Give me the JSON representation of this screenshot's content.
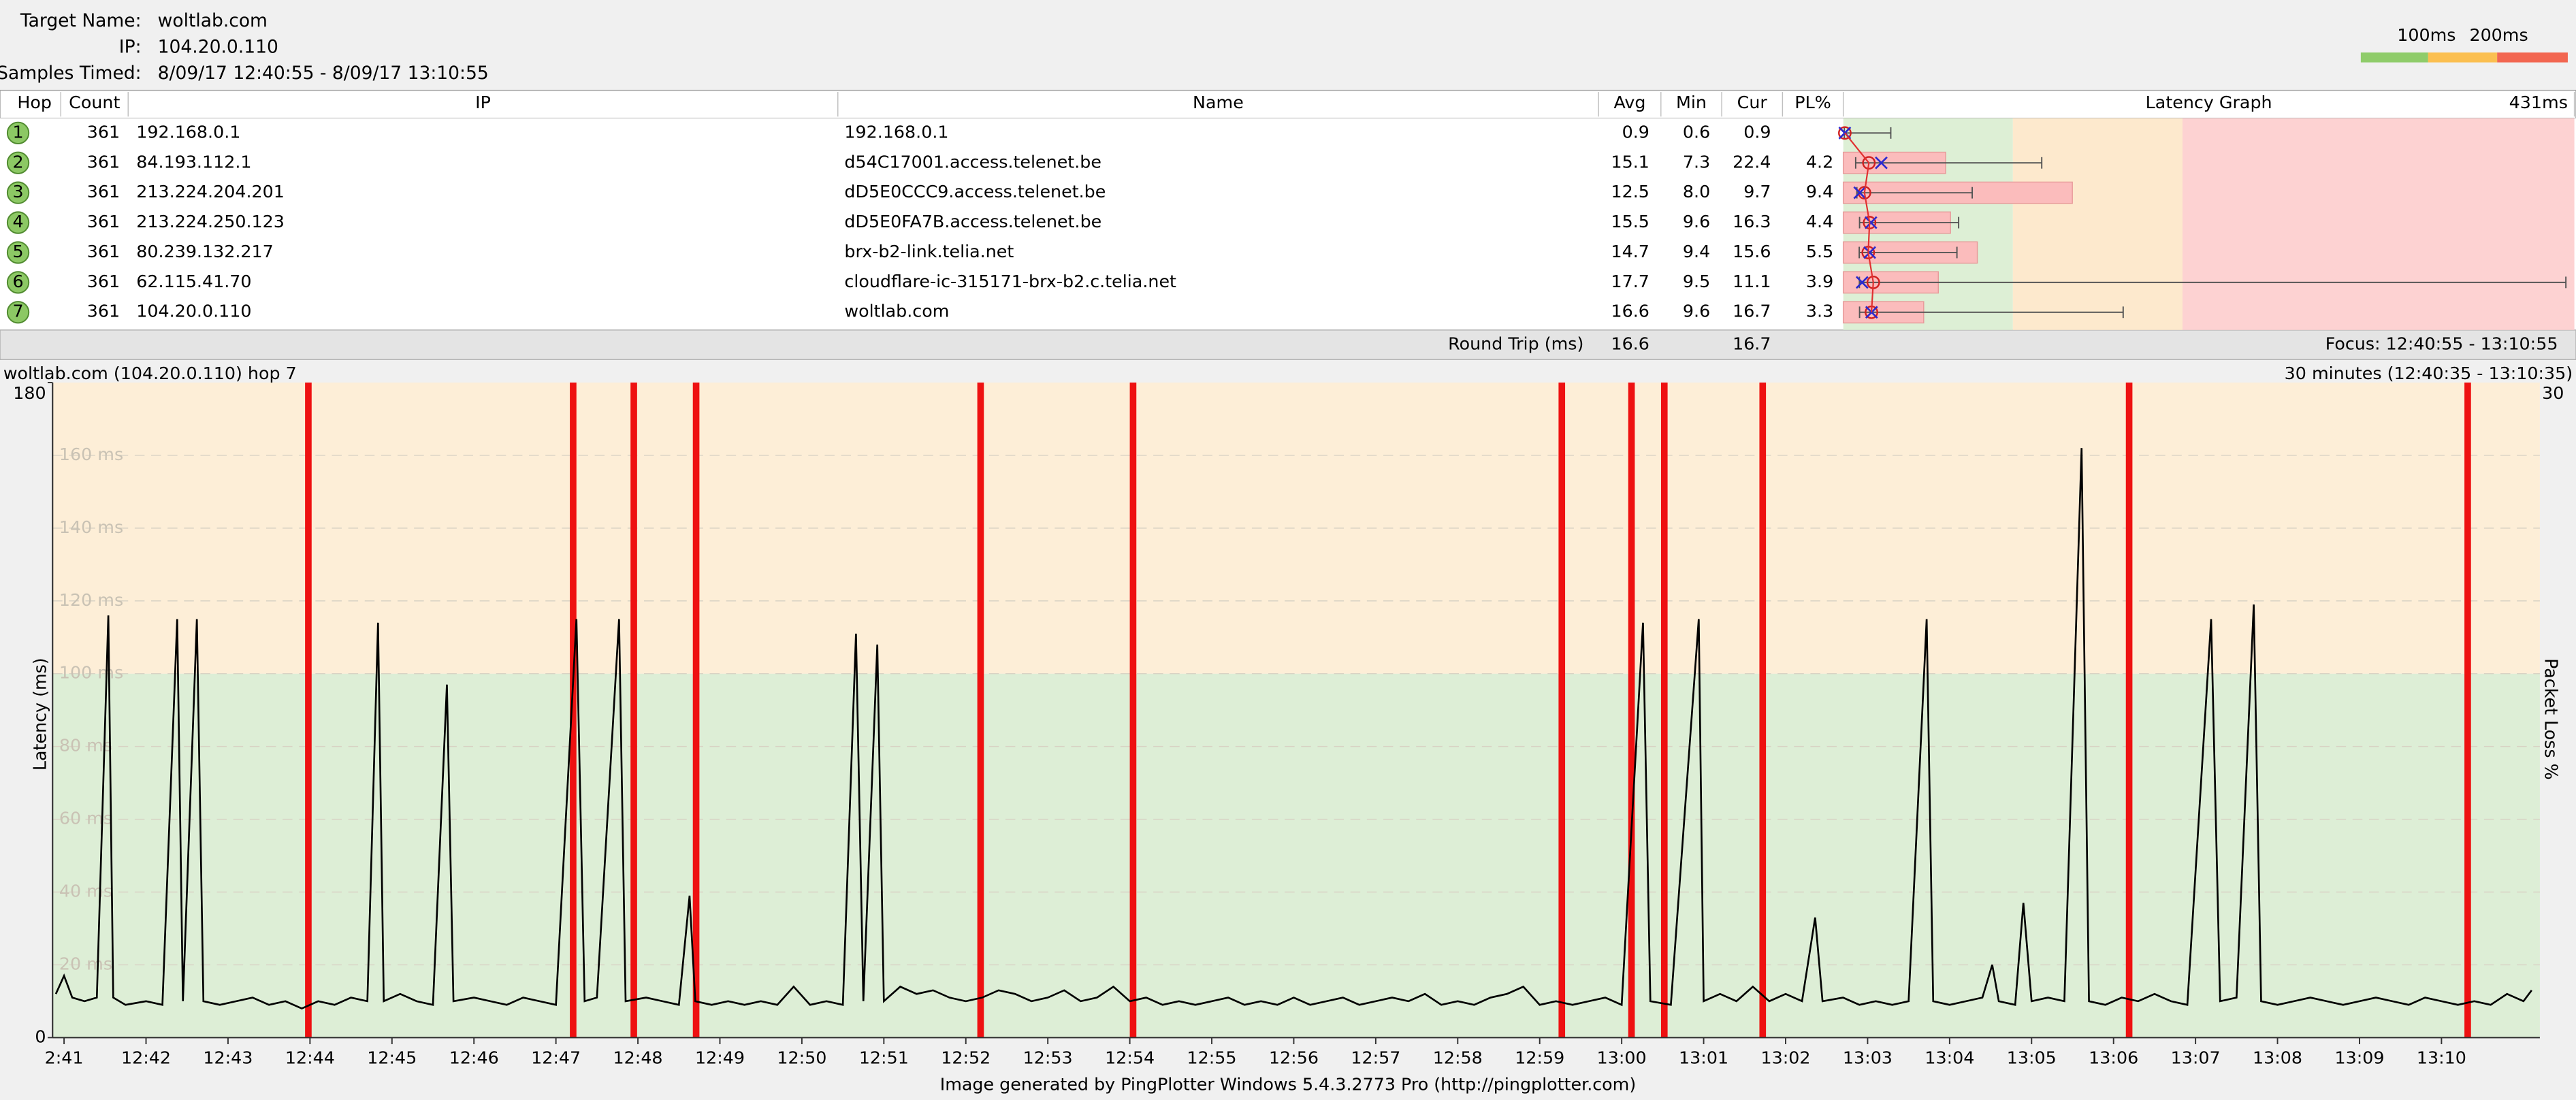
{
  "header": {
    "target_label": "Target Name:",
    "target": "woltlab.com",
    "ip_label": "IP:",
    "ip": "104.20.0.110",
    "samples_label": "Samples Timed:",
    "samples": "8/09/17 12:40:55 - 8/09/17 13:10:55"
  },
  "thresholds": [
    {
      "value": 100,
      "label": "100ms"
    },
    {
      "value": 200,
      "label": "200ms"
    }
  ],
  "table": {
    "columns": [
      "Hop",
      "Count",
      "IP",
      "Name",
      "Avg",
      "Min",
      "Cur",
      "PL%",
      "Latency Graph"
    ],
    "graph_scale": {
      "value": 431,
      "label": "431ms"
    },
    "rows": [
      {
        "hop": 1,
        "count": 361,
        "ip": "192.168.0.1",
        "name": "192.168.0.1",
        "avg": "0.9",
        "min": "0.6",
        "cur": "0.9",
        "pl": null,
        "graph_max": 28
      },
      {
        "hop": 2,
        "count": 361,
        "ip": "84.193.112.1",
        "name": "d54C17001.access.telenet.be",
        "avg": "15.1",
        "min": "7.3",
        "cur": "22.4",
        "pl": "4.2",
        "graph_max": 117
      },
      {
        "hop": 3,
        "count": 361,
        "ip": "213.224.204.201",
        "name": "dD5E0CCC9.access.telenet.be",
        "avg": "12.5",
        "min": "8.0",
        "cur": "9.7",
        "pl": "9.4",
        "graph_max": 76
      },
      {
        "hop": 4,
        "count": 361,
        "ip": "213.224.250.123",
        "name": "dD5E0FA7B.access.telenet.be",
        "avg": "15.5",
        "min": "9.6",
        "cur": "16.3",
        "pl": "4.4",
        "graph_max": 68
      },
      {
        "hop": 5,
        "count": 361,
        "ip": "80.239.132.217",
        "name": "brx-b2-link.telia.net",
        "avg": "14.7",
        "min": "9.4",
        "cur": "15.6",
        "pl": "5.5",
        "graph_max": 67
      },
      {
        "hop": 6,
        "count": 361,
        "ip": "62.115.41.70",
        "name": "cloudflare-ic-315171-brx-b2.c.telia.net",
        "avg": "17.7",
        "min": "9.5",
        "cur": "11.1",
        "pl": "3.9",
        "graph_max": 426
      },
      {
        "hop": 7,
        "count": 361,
        "ip": "104.20.0.110",
        "name": "woltlab.com",
        "avg": "16.6",
        "min": "9.6",
        "cur": "16.7",
        "pl": "3.3",
        "graph_max": 165
      }
    ],
    "round_trip": {
      "label": "Round Trip (ms)",
      "avg": "16.6",
      "cur": "16.7"
    },
    "focus": "Focus: 12:40:55 - 13:10:55"
  },
  "chart_data": {
    "type": "line",
    "title": "woltlab.com (104.20.0.110) hop 7",
    "subtitle": "30 minutes (12:40:35 - 13:10:35)",
    "y_label": "Latency (ms)",
    "y2_label": "Packet Loss %",
    "xlim": [
      40.86,
      71.2
    ],
    "xticks": [
      {
        "value": 41,
        "label": "2:41"
      },
      {
        "value": 42,
        "label": "12:42"
      },
      {
        "value": 43,
        "label": "12:43"
      },
      {
        "value": 44,
        "label": "12:44"
      },
      {
        "value": 45,
        "label": "12:45"
      },
      {
        "value": 46,
        "label": "12:46"
      },
      {
        "value": 47,
        "label": "12:47"
      },
      {
        "value": 48,
        "label": "12:48"
      },
      {
        "value": 49,
        "label": "12:49"
      },
      {
        "value": 50,
        "label": "12:50"
      },
      {
        "value": 51,
        "label": "12:51"
      },
      {
        "value": 52,
        "label": "12:52"
      },
      {
        "value": 53,
        "label": "12:53"
      },
      {
        "value": 54,
        "label": "12:54"
      },
      {
        "value": 55,
        "label": "12:55"
      },
      {
        "value": 56,
        "label": "12:56"
      },
      {
        "value": 57,
        "label": "12:57"
      },
      {
        "value": 58,
        "label": "12:58"
      },
      {
        "value": 59,
        "label": "12:59"
      },
      {
        "value": 60,
        "label": "13:00"
      },
      {
        "value": 61,
        "label": "13:01"
      },
      {
        "value": 62,
        "label": "13:02"
      },
      {
        "value": 63,
        "label": "13:03"
      },
      {
        "value": 64,
        "label": "13:04"
      },
      {
        "value": 65,
        "label": "13:05"
      },
      {
        "value": 66,
        "label": "13:06"
      },
      {
        "value": 67,
        "label": "13:07"
      },
      {
        "value": 68,
        "label": "13:08"
      },
      {
        "value": 69,
        "label": "13:09"
      },
      {
        "value": 70,
        "label": "13:10"
      }
    ],
    "ylim": [
      0,
      180
    ],
    "yticks": [
      0,
      {
        "value": 20,
        "label": "20 ms"
      },
      {
        "value": 40,
        "label": "40 ms"
      },
      {
        "value": 60,
        "label": "60 ms"
      },
      {
        "value": 80,
        "label": "80 ms"
      },
      {
        "value": 100,
        "label": "100 ms"
      },
      {
        "value": 120,
        "label": "120 ms"
      },
      {
        "value": 140,
        "label": "140 ms"
      },
      {
        "value": 160,
        "label": "160 ms"
      },
      180
    ],
    "y2lim": [
      0,
      30
    ],
    "y2ticks": [
      30
    ],
    "series": [
      {
        "color": "#000000",
        "x": [
          40.9,
          41.0,
          41.1,
          41.25,
          41.4,
          41.54,
          41.6,
          41.75,
          42.0,
          42.2,
          42.38,
          42.45,
          42.62,
          42.7,
          42.9,
          43.1,
          43.3,
          43.5,
          43.7,
          43.9,
          44.1,
          44.3,
          44.5,
          44.7,
          44.83,
          44.9,
          45.1,
          45.3,
          45.5,
          45.67,
          45.75,
          46.0,
          46.2,
          46.4,
          46.6,
          46.8,
          47.0,
          47.25,
          47.35,
          47.5,
          47.77,
          47.85,
          48.1,
          48.3,
          48.5,
          48.63,
          48.7,
          48.9,
          49.1,
          49.3,
          49.5,
          49.7,
          49.9,
          50.1,
          50.3,
          50.5,
          50.66,
          50.75,
          50.92,
          51.0,
          51.2,
          51.4,
          51.6,
          51.8,
          52.0,
          52.2,
          52.4,
          52.6,
          52.8,
          53.0,
          53.2,
          53.4,
          53.6,
          53.8,
          54.0,
          54.2,
          54.4,
          54.6,
          54.8,
          55.0,
          55.2,
          55.4,
          55.6,
          55.8,
          56.0,
          56.2,
          56.4,
          56.6,
          56.8,
          57.0,
          57.2,
          57.4,
          57.6,
          57.8,
          58.0,
          58.2,
          58.4,
          58.6,
          58.8,
          59.0,
          59.2,
          59.4,
          59.6,
          59.8,
          60.0,
          60.26,
          60.35,
          60.6,
          60.94,
          61.0,
          61.2,
          61.4,
          61.6,
          61.8,
          62.0,
          62.2,
          62.36,
          62.45,
          62.7,
          62.9,
          63.1,
          63.3,
          63.5,
          63.72,
          63.8,
          64.0,
          64.2,
          64.4,
          64.52,
          64.6,
          64.8,
          64.9,
          65.0,
          65.2,
          65.4,
          65.61,
          65.7,
          65.9,
          66.1,
          66.3,
          66.5,
          66.7,
          66.9,
          67.19,
          67.3,
          67.5,
          67.71,
          67.8,
          68.0,
          68.2,
          68.4,
          68.6,
          68.8,
          69.0,
          69.2,
          69.4,
          69.6,
          69.8,
          70.0,
          70.2,
          70.4,
          70.6,
          70.8,
          71.0,
          71.1
        ],
        "values": [
          12,
          17,
          11,
          10,
          11,
          116,
          11,
          9,
          10,
          9,
          115,
          10,
          115,
          10,
          9,
          10,
          11,
          9,
          10,
          8,
          10,
          9,
          11,
          10,
          114,
          10,
          12,
          10,
          9,
          97,
          10,
          11,
          10,
          9,
          11,
          10,
          9,
          115,
          10,
          11,
          115,
          10,
          11,
          10,
          9,
          39,
          10,
          9,
          10,
          9,
          10,
          9,
          14,
          9,
          10,
          9,
          111,
          10,
          108,
          10,
          14,
          12,
          13,
          11,
          10,
          11,
          13,
          12,
          10,
          11,
          13,
          10,
          11,
          14,
          10,
          11,
          9,
          10,
          9,
          10,
          11,
          9,
          10,
          9,
          11,
          9,
          10,
          11,
          9,
          10,
          11,
          10,
          12,
          9,
          10,
          9,
          11,
          12,
          14,
          9,
          10,
          9,
          10,
          11,
          9,
          114,
          10,
          9,
          115,
          10,
          12,
          10,
          14,
          10,
          12,
          10,
          33,
          10,
          11,
          9,
          10,
          9,
          10,
          115,
          10,
          9,
          10,
          11,
          20,
          10,
          9,
          37,
          10,
          11,
          10,
          162,
          10,
          9,
          11,
          10,
          12,
          10,
          9,
          115,
          10,
          11,
          119,
          10,
          9,
          10,
          11,
          10,
          9,
          10,
          11,
          10,
          9,
          11,
          10,
          9,
          10,
          9,
          12,
          10,
          13
        ]
      },
      {
        "axis": "y2",
        "color": "#ee1111",
        "x": [
          43.98,
          47.21,
          47.95,
          48.71,
          52.18,
          54.04,
          59.27,
          60.12,
          60.52,
          61.72,
          66.19,
          70.32
        ],
        "values": [
          100,
          100,
          100,
          100,
          100,
          100,
          100,
          100,
          100,
          100,
          100,
          100
        ]
      }
    ]
  },
  "footer": "Image generated by PingPlotter Windows 5.4.3.2773 Pro (http://pingplotter.com)"
}
